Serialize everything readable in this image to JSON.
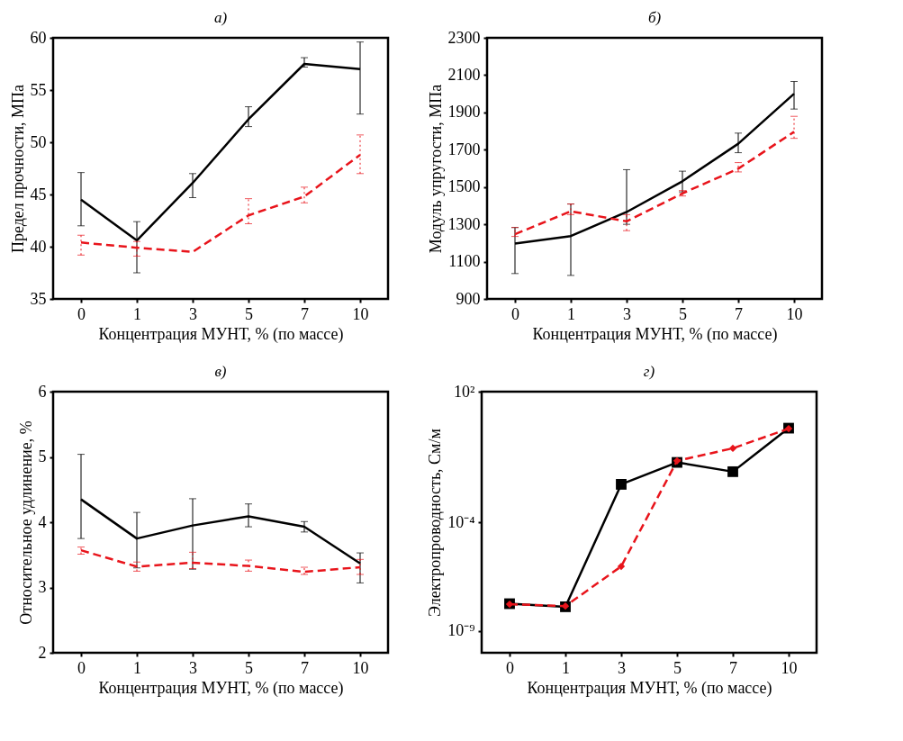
{
  "chart_data": [
    {
      "type": "line",
      "title": "а)",
      "xlabel": "Концентрация МУНТ, % (по массе)",
      "ylabel": "Предел прочности, МПа",
      "categories": [
        "0",
        "1",
        "3",
        "5",
        "7",
        "10"
      ],
      "ylim": [
        35,
        60
      ],
      "yticks": [
        35,
        40,
        45,
        50,
        55,
        60
      ],
      "series": [
        {
          "color": "#000000",
          "line_style": "solid",
          "values": [
            44.5,
            40.6,
            46.1,
            52.2,
            57.5,
            57.0
          ],
          "errors": [
            [
              42.0,
              47.1
            ],
            [
              37.5,
              42.4
            ],
            [
              44.7,
              47.0
            ],
            [
              51.5,
              53.4
            ],
            [
              57.2,
              58.1
            ],
            [
              52.7,
              59.6
            ]
          ]
        },
        {
          "color": "#e8141b",
          "line_style": "dashed",
          "values": [
            40.4,
            39.9,
            39.5,
            43.0,
            44.8,
            48.8
          ],
          "errors": [
            [
              39.2,
              41.1
            ],
            [
              39.1,
              40.5
            ],
            null,
            [
              42.2,
              44.6
            ],
            [
              44.2,
              45.7
            ],
            [
              47.0,
              50.7
            ]
          ]
        }
      ]
    },
    {
      "type": "line",
      "title": "б)",
      "xlabel": "Концентрация МУНТ, % (по массе)",
      "ylabel": "Модуль упругости, МПа",
      "categories": [
        "0",
        "1",
        "3",
        "5",
        "7",
        "10"
      ],
      "ylim": [
        900,
        2300
      ],
      "yticks": [
        900,
        1100,
        1300,
        1500,
        1700,
        1900,
        2100,
        2300
      ],
      "series": [
        {
          "color": "#000000",
          "line_style": "solid",
          "values": [
            1197,
            1237,
            1366,
            1531,
            1732,
            2000
          ],
          "errors": [
            [
              1036,
              1283
            ],
            [
              1026,
              1409
            ],
            [
              1300,
              1593
            ],
            [
              1474,
              1585
            ],
            [
              1684,
              1789
            ],
            [
              1918,
              2066
            ]
          ]
        },
        {
          "color": "#e8141b",
          "line_style": "dashed",
          "values": [
            1247,
            1370,
            1316,
            1466,
            1598,
            1796
          ],
          "errors": [
            [
              1235,
              1283
            ],
            [
              1352,
              1409
            ],
            [
              1266,
              1352
            ],
            [
              1452,
              1481
            ],
            [
              1581,
              1631
            ],
            [
              1761,
              1879
            ]
          ]
        }
      ]
    },
    {
      "type": "line",
      "title": "в)",
      "xlabel": "Концентрация МУНТ, % (по массе)",
      "ylabel": "Относительное удлинение, %",
      "categories": [
        "0",
        "1",
        "3",
        "5",
        "7",
        "10"
      ],
      "ylim": [
        2,
        6
      ],
      "yticks": [
        2,
        3,
        4,
        5,
        6
      ],
      "series": [
        {
          "color": "#000000",
          "line_style": "solid",
          "values": [
            4.35,
            3.75,
            3.95,
            4.09,
            3.93,
            3.37
          ],
          "errors": [
            [
              3.75,
              5.04
            ],
            [
              3.3,
              4.15
            ],
            [
              3.28,
              4.36
            ],
            [
              3.93,
              4.28
            ],
            [
              3.85,
              4.01
            ],
            [
              3.07,
              3.53
            ]
          ]
        },
        {
          "color": "#e8141b",
          "line_style": "dashed",
          "values": [
            3.57,
            3.32,
            3.38,
            3.33,
            3.24,
            3.31
          ],
          "errors": [
            [
              3.51,
              3.62
            ],
            [
              3.25,
              3.39
            ],
            [
              3.29,
              3.54
            ],
            [
              3.25,
              3.42
            ],
            [
              3.2,
              3.31
            ],
            [
              3.2,
              3.43
            ]
          ]
        }
      ]
    },
    {
      "type": "line",
      "title": "г)",
      "xlabel": "Концентрация МУНТ, % (по массе)",
      "ylabel": "Электропроводность, См/м",
      "categories": [
        "0",
        "1",
        "3",
        "5",
        "7",
        "10"
      ],
      "log": true,
      "ylim": [
        1e-10,
        100
      ],
      "yticks": [
        {
          "value": 1e-09,
          "label": "10⁻⁹"
        },
        {
          "value": 0.0001,
          "label": "10⁻⁴"
        },
        {
          "value": 100,
          "label": "10²"
        }
      ],
      "series": [
        {
          "color": "#000000",
          "line_style": "solid",
          "marker": "square",
          "values": [
            1.8e-08,
            1.3e-08,
            0.0055,
            0.056,
            0.021,
            2.1
          ]
        },
        {
          "color": "#e8141b",
          "line_style": "dashed",
          "marker": "diamond",
          "values": [
            1.7e-08,
            1.4e-08,
            9.3e-07,
            0.066,
            0.25,
            2.0
          ]
        }
      ]
    }
  ]
}
